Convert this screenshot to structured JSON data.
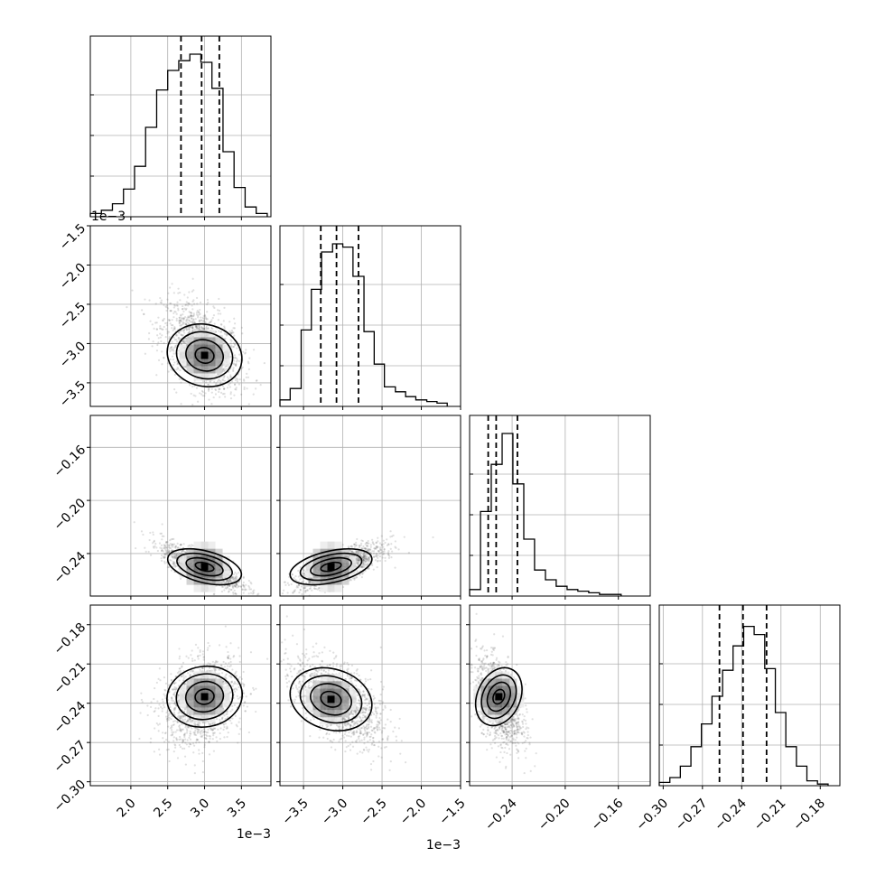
{
  "chart_data": {
    "type": "corner",
    "title": "",
    "parameters": [
      {
        "label": "",
        "range": [
          0.00145,
          0.0039
        ],
        "ticks": [
          0.002,
          0.0025,
          0.003,
          0.0035
        ],
        "tick_labels": [
          "2.0",
          "2.5",
          "3.0",
          "3.5"
        ],
        "offset_text": "1e−3",
        "quantiles": [
          0.00268,
          0.00296,
          0.0032
        ],
        "mean": 0.00296,
        "sd": 0.00027
      },
      {
        "label": "",
        "range": [
          -0.0038,
          -0.0015
        ],
        "ticks": [
          -0.0035,
          -0.003,
          -0.0025,
          -0.002,
          -0.0015
        ],
        "tick_labels": [
          "−3.5",
          "−3.0",
          "−2.5",
          "−2.0",
          "−1.5"
        ],
        "offset_text": "1e−3",
        "quantiles": [
          -0.00328,
          -0.00308,
          -0.0028
        ],
        "mean": -0.00305,
        "sd": 0.00028
      },
      {
        "label": "",
        "range": [
          -0.272,
          -0.136
        ],
        "ticks": [
          -0.24,
          -0.2,
          -0.16
        ],
        "tick_labels": [
          "−0.24",
          "−0.20",
          "−0.16"
        ],
        "offset_text": "",
        "quantiles": [
          -0.258,
          -0.252,
          -0.236
        ],
        "mean": -0.25,
        "sd": 0.0085
      },
      {
        "label": "",
        "range": [
          -0.303,
          -0.165
        ],
        "ticks": [
          -0.3,
          -0.27,
          -0.24,
          -0.21,
          -0.18
        ],
        "tick_labels": [
          "−0.30",
          "−0.27",
          "−0.24",
          "−0.21",
          "−0.18"
        ],
        "offset_text": "",
        "quantiles": [
          -0.257,
          -0.239,
          -0.221
        ],
        "mean": -0.239,
        "sd": 0.0165
      }
    ],
    "histograms": [
      {
        "param": 0,
        "bins": [
          0.00145,
          0.0016,
          0.00175,
          0.0019,
          0.00205,
          0.0022,
          0.00235,
          0.0025,
          0.00265,
          0.0028,
          0.00295,
          0.0031,
          0.00325,
          0.0034,
          0.00355,
          0.0037,
          0.00385
        ],
        "counts": [
          0.02,
          0.04,
          0.08,
          0.17,
          0.31,
          0.55,
          0.78,
          0.9,
          0.96,
          1.0,
          0.95,
          0.79,
          0.4,
          0.18,
          0.06,
          0.02
        ]
      },
      {
        "param": 1,
        "bins": [
          -0.0038,
          -0.00367,
          -0.00353,
          -0.0034,
          -0.00327,
          -0.00313,
          -0.003,
          -0.00287,
          -0.00273,
          -0.0026,
          -0.00247,
          -0.00233,
          -0.0022,
          -0.00207,
          -0.00193,
          -0.0018,
          -0.00167
        ],
        "counts": [
          0.04,
          0.11,
          0.47,
          0.72,
          0.95,
          1.0,
          0.98,
          0.8,
          0.46,
          0.26,
          0.12,
          0.09,
          0.06,
          0.04,
          0.03,
          0.02
        ]
      },
      {
        "param": 2,
        "bins": [
          -0.272,
          -0.2638,
          -0.2557,
          -0.2475,
          -0.2394,
          -0.2312,
          -0.2231,
          -0.2149,
          -0.2068,
          -0.1986,
          -0.1905,
          -0.1823,
          -0.1742,
          -0.166,
          -0.1579
        ],
        "counts": [
          0.04,
          0.52,
          0.81,
          1.0,
          0.69,
          0.35,
          0.16,
          0.1,
          0.06,
          0.04,
          0.03,
          0.02,
          0.01,
          0.01
        ]
      },
      {
        "param": 3,
        "bins": [
          -0.303,
          -0.2949,
          -0.2869,
          -0.2788,
          -0.2708,
          -0.2627,
          -0.2546,
          -0.2466,
          -0.2385,
          -0.2305,
          -0.2224,
          -0.2143,
          -0.2063,
          -0.1982,
          -0.1902,
          -0.1821,
          -0.174
        ],
        "counts": [
          0.02,
          0.05,
          0.12,
          0.24,
          0.38,
          0.55,
          0.71,
          0.86,
          0.98,
          0.93,
          0.72,
          0.45,
          0.24,
          0.12,
          0.03,
          0.01
        ]
      }
    ],
    "pairs": [
      {
        "x": 0,
        "y": 1,
        "correlation": -0.45,
        "peak": [
          0.003,
          -0.00315
        ]
      },
      {
        "x": 0,
        "y": 2,
        "correlation": -0.78,
        "peak": [
          0.003,
          -0.25
        ]
      },
      {
        "x": 1,
        "y": 2,
        "correlation": 0.75,
        "peak": [
          -0.00315,
          -0.25
        ]
      },
      {
        "x": 0,
        "y": 3,
        "correlation": 0.25,
        "peak": [
          0.003,
          -0.235
        ]
      },
      {
        "x": 1,
        "y": 3,
        "correlation": -0.55,
        "peak": [
          -0.00315,
          -0.237
        ]
      },
      {
        "x": 2,
        "y": 3,
        "correlation": -0.45,
        "peak": [
          -0.25,
          -0.235
        ]
      }
    ],
    "contour_levels": [
      0.5,
      1.0,
      1.5,
      2.0
    ],
    "grid": true,
    "legend": "none"
  }
}
